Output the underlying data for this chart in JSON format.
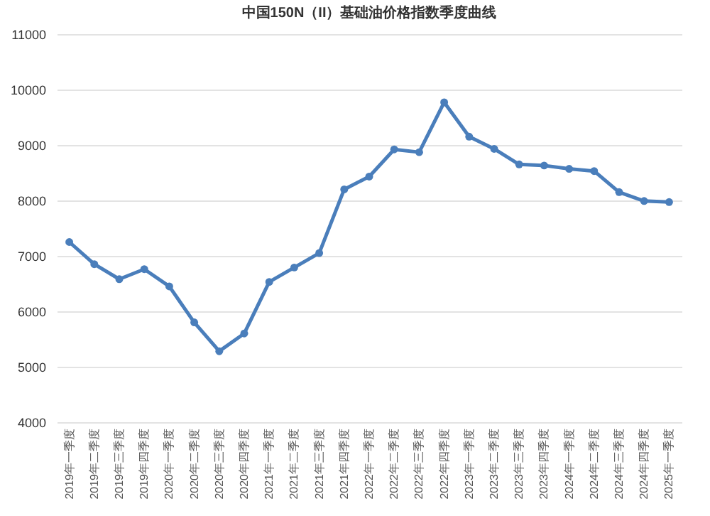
{
  "chart_data": {
    "type": "line",
    "title": "中国150N（II）基础油价格指数季度曲线",
    "categories": [
      "2019年一季度",
      "2019年二季度",
      "2019年三季度",
      "2019年四季度",
      "2020年一季度",
      "2020年二季度",
      "2020年三季度",
      "2020年四季度",
      "2021年一季度",
      "2021年二季度",
      "2021年三季度",
      "2021年四季度",
      "2022年一季度",
      "2022年二季度",
      "2022年三季度",
      "2022年四季度",
      "2023年一季度",
      "2023年二季度",
      "2023年三季度",
      "2023年四季度",
      "2024年一季度",
      "2024年二季度",
      "2024年三季度",
      "2024年四季度",
      "2025年一季度"
    ],
    "series": [
      {
        "color": "#4a7ebb",
        "values": [
          7250,
          6850,
          6580,
          6760,
          6450,
          5800,
          5280,
          5600,
          6530,
          6790,
          7050,
          8200,
          8430,
          8920,
          8870,
          9770,
          9150,
          8930,
          8650,
          8630,
          8570,
          8530,
          8150,
          7990,
          7970
        ]
      }
    ],
    "ylim": [
      4000,
      11000
    ],
    "yticks": [
      4000,
      5000,
      6000,
      7000,
      8000,
      9000,
      10000,
      11000
    ],
    "grid": "y",
    "marker": "circle",
    "line_style": "solid"
  }
}
